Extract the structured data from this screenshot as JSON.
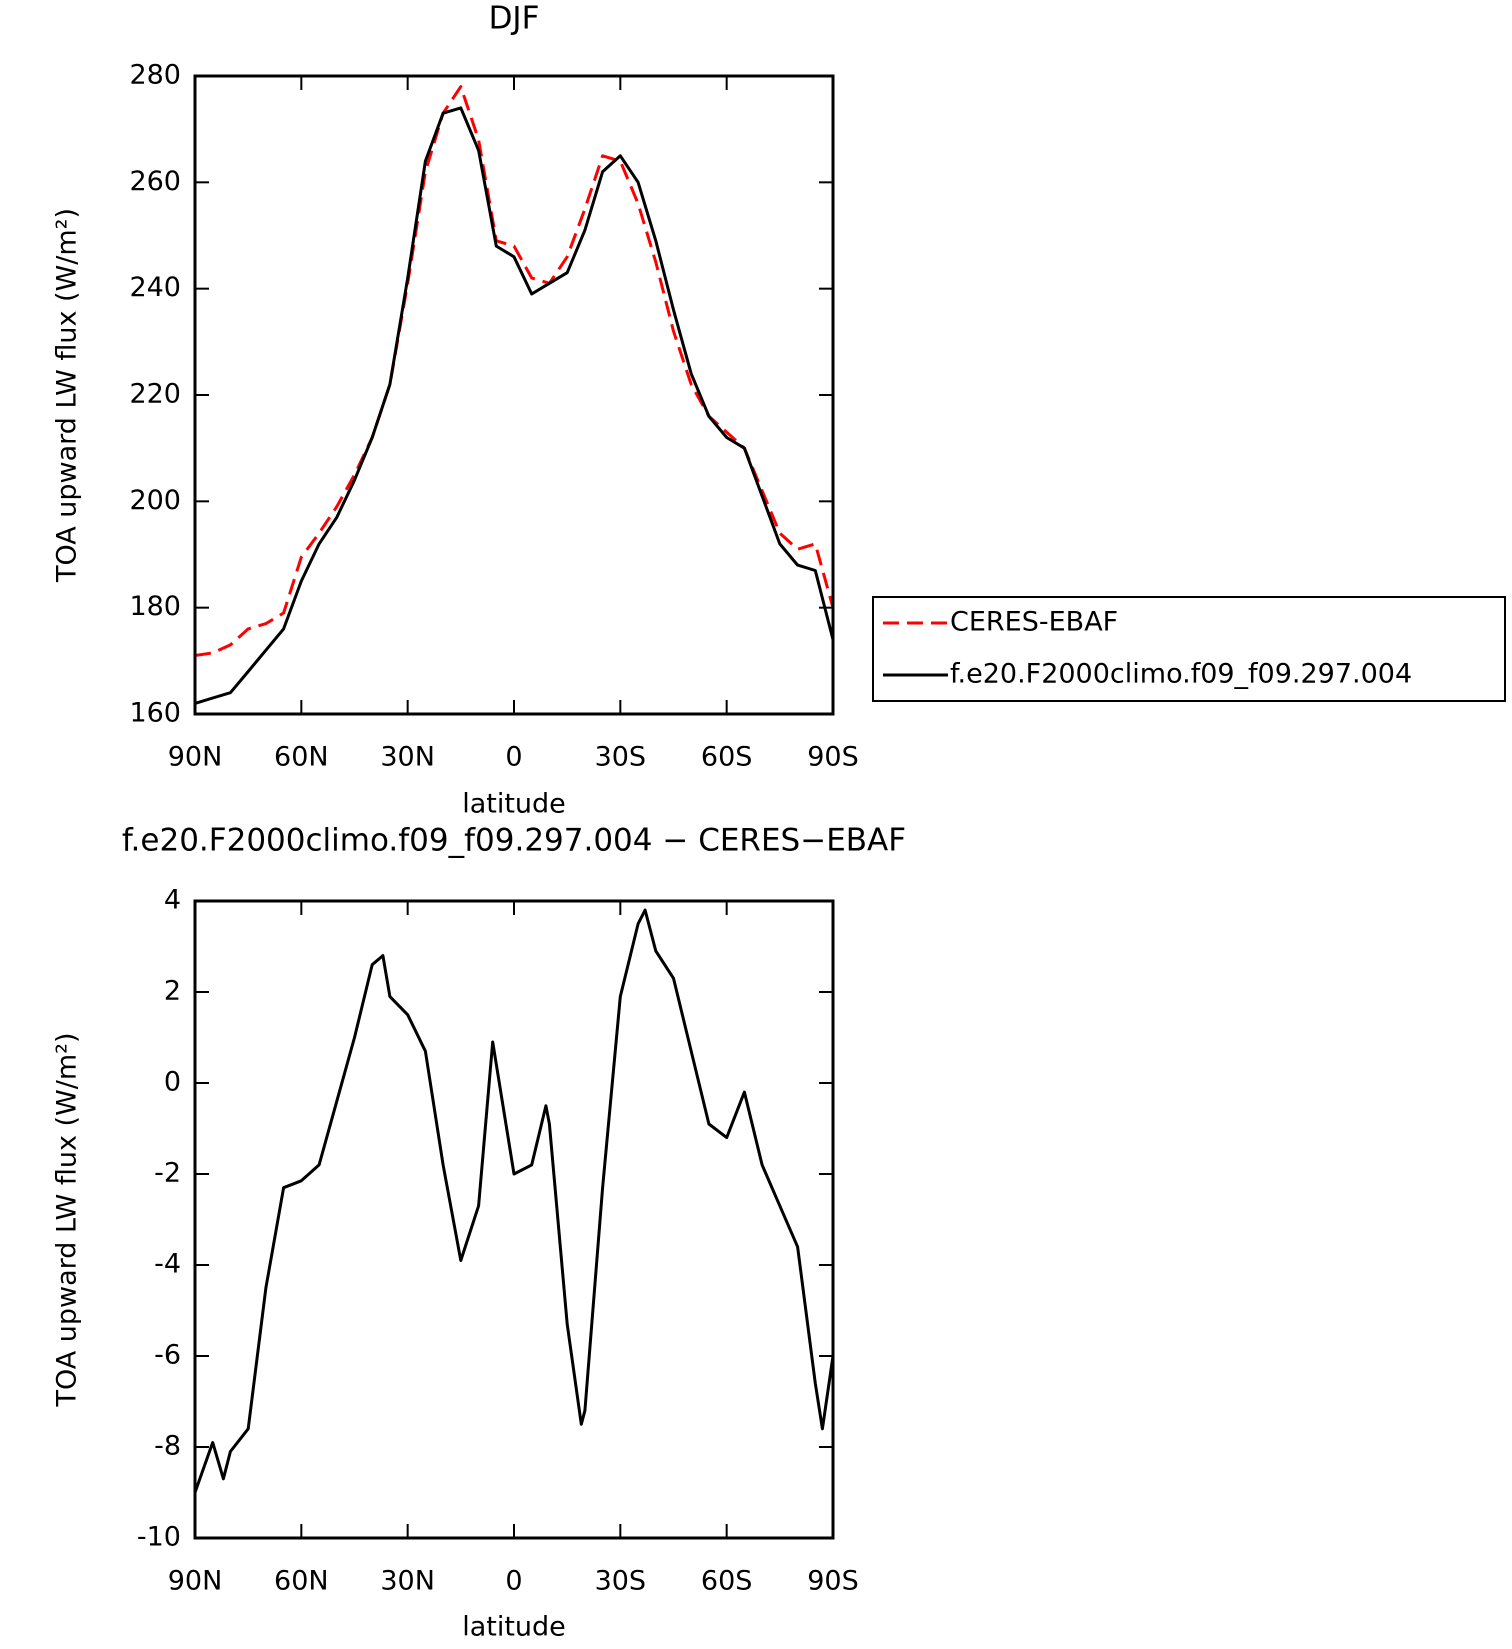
{
  "chart_data": [
    {
      "type": "line",
      "title": "DJF",
      "xlabel": "latitude",
      "ylabel": "TOA upward LW flux (W/m²)",
      "x": [
        90,
        85,
        80,
        75,
        70,
        65,
        60,
        55,
        50,
        45,
        40,
        35,
        30,
        25,
        20,
        15,
        10,
        5,
        0,
        -5,
        -10,
        -15,
        -20,
        -25,
        -30,
        -35,
        -40,
        -45,
        -50,
        -55,
        -60,
        -65,
        -70,
        -75,
        -80,
        -85,
        -90
      ],
      "series": [
        {
          "name": "CERES-EBAF",
          "color": "#ff0000",
          "dashed": true,
          "values": [
            171,
            171.5,
            173,
            176,
            177,
            179,
            189.5,
            194,
            199,
            205,
            212,
            222,
            241,
            262,
            273,
            278,
            268,
            249,
            248,
            242,
            241,
            246,
            255,
            265,
            264,
            256,
            245,
            232,
            222,
            216,
            213,
            210,
            202,
            194,
            191,
            192,
            180
          ]
        },
        {
          "name": "f.e20.F2000climo.f09_f09.297.004",
          "color": "#000000",
          "dashed": false,
          "values": [
            162,
            163,
            164,
            168,
            172,
            176,
            185,
            192,
            197,
            204,
            212,
            222,
            242,
            264,
            273,
            274,
            266,
            248,
            246,
            239,
            241,
            243,
            251,
            262,
            265,
            260,
            249,
            236,
            224,
            216,
            212,
            210,
            201,
            192,
            188,
            187,
            174
          ]
        }
      ],
      "xlim": [
        90,
        -90
      ],
      "xticks": [
        {
          "value": 90,
          "label": "90N"
        },
        {
          "value": 60,
          "label": "60N"
        },
        {
          "value": 30,
          "label": "30N"
        },
        0,
        {
          "value": -30,
          "label": "30S"
        },
        {
          "value": -60,
          "label": "60S"
        },
        {
          "value": -90,
          "label": "90S"
        }
      ],
      "ylim": [
        160,
        280
      ],
      "yticks": [
        160,
        180,
        200,
        220,
        240,
        260,
        280
      ],
      "legend": "right"
    },
    {
      "type": "line",
      "title": "f.e20.F2000climo.f09_f09.297.004 − CERES−EBAF",
      "xlabel": "latitude",
      "ylabel": "TOA upward LW flux (W/m²)",
      "x": [
        90,
        85,
        82,
        80,
        75,
        70,
        65,
        60,
        55,
        50,
        45,
        40,
        37,
        35,
        30,
        25,
        20,
        15,
        10,
        6,
        0,
        -5,
        -9,
        -10,
        -15,
        -19,
        -20,
        -25,
        -30,
        -35,
        -37,
        -40,
        -45,
        -50,
        -55,
        -60,
        -65,
        -70,
        -75,
        -80,
        -85,
        -87,
        -90
      ],
      "series": [
        {
          "color": "#000000",
          "dashed": false,
          "values": [
            -9,
            -7.9,
            -8.7,
            -8.1,
            -7.6,
            -4.5,
            -2.3,
            -2.15,
            -1.8,
            -0.4,
            1.0,
            2.6,
            2.8,
            1.9,
            1.5,
            0.7,
            -1.8,
            -3.9,
            -2.7,
            0.9,
            -2.0,
            -1.8,
            -0.5,
            -0.9,
            -5.3,
            -7.5,
            -7.2,
            -2.3,
            1.9,
            3.5,
            3.8,
            2.9,
            2.3,
            0.7,
            -0.9,
            -1.2,
            -0.2,
            -1.8,
            -2.7,
            -3.6,
            -6.6,
            -7.6,
            -6.0
          ]
        }
      ],
      "xlim": [
        90,
        -90
      ],
      "xticks": [
        {
          "value": 90,
          "label": "90N"
        },
        {
          "value": 60,
          "label": "60N"
        },
        {
          "value": 30,
          "label": "30N"
        },
        0,
        {
          "value": -30,
          "label": "30S"
        },
        {
          "value": -60,
          "label": "60S"
        },
        {
          "value": -90,
          "label": "90S"
        }
      ],
      "ylim": [
        -10,
        4
      ],
      "yticks": [
        -10,
        -8,
        -6,
        -4,
        -2,
        0,
        2,
        4
      ]
    }
  ]
}
